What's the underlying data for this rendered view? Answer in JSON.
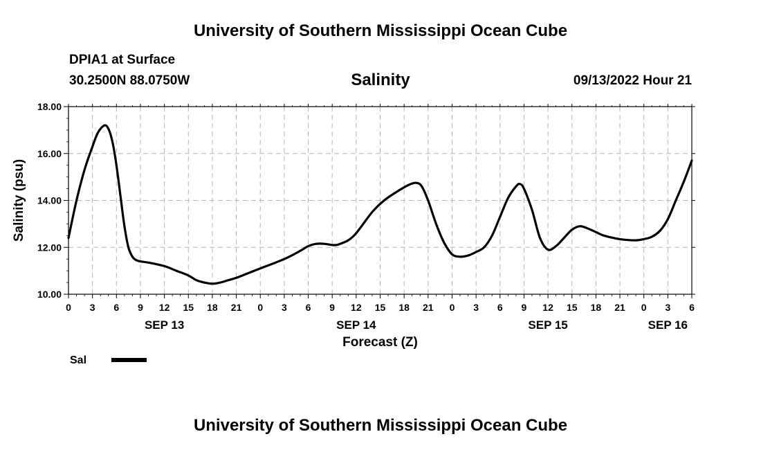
{
  "header": {
    "title": "University of Southern Mississippi Ocean Cube",
    "station": "DPIA1 at Surface",
    "coords": "30.2500N  88.0750W",
    "variable": "Salinity",
    "datetime": "09/13/2022 Hour 21"
  },
  "footer": {
    "title": "University of Southern Mississippi Ocean Cube"
  },
  "chart_data": {
    "type": "line",
    "title": "Salinity",
    "xlabel": "Forecast (Z)",
    "ylabel": "Salinity (psu)",
    "ylim": [
      10,
      18
    ],
    "xlim": [
      0,
      78
    ],
    "x_unit": "forecast hour from SEP 13 0Z (tick labels show hour of day)",
    "yticks": [
      "10.00",
      "12.00",
      "14.00",
      "16.00",
      "18.00"
    ],
    "xticks": [
      {
        "x": 0,
        "label": "0"
      },
      {
        "x": 3,
        "label": "3"
      },
      {
        "x": 6,
        "label": "6"
      },
      {
        "x": 9,
        "label": "9"
      },
      {
        "x": 12,
        "label": "12"
      },
      {
        "x": 15,
        "label": "15"
      },
      {
        "x": 18,
        "label": "18"
      },
      {
        "x": 21,
        "label": "21"
      },
      {
        "x": 24,
        "label": "0"
      },
      {
        "x": 27,
        "label": "3"
      },
      {
        "x": 30,
        "label": "6"
      },
      {
        "x": 33,
        "label": "9"
      },
      {
        "x": 36,
        "label": "12"
      },
      {
        "x": 39,
        "label": "15"
      },
      {
        "x": 42,
        "label": "18"
      },
      {
        "x": 45,
        "label": "21"
      },
      {
        "x": 48,
        "label": "0"
      },
      {
        "x": 51,
        "label": "3"
      },
      {
        "x": 54,
        "label": "6"
      },
      {
        "x": 57,
        "label": "9"
      },
      {
        "x": 60,
        "label": "12"
      },
      {
        "x": 63,
        "label": "15"
      },
      {
        "x": 66,
        "label": "18"
      },
      {
        "x": 69,
        "label": "21"
      },
      {
        "x": 72,
        "label": "0"
      },
      {
        "x": 75,
        "label": "3"
      },
      {
        "x": 78,
        "label": "6"
      }
    ],
    "date_labels": [
      {
        "x": 12,
        "label": "SEP 13"
      },
      {
        "x": 36,
        "label": "SEP 14"
      },
      {
        "x": 60,
        "label": "SEP 15"
      },
      {
        "x": 75,
        "label": "SEP 16"
      }
    ],
    "grid": true,
    "legend": "bottom-left",
    "series": [
      {
        "name": "Sal",
        "color": "#000000",
        "x": [
          0,
          1,
          2,
          3,
          3.7,
          4.5,
          5,
          5.5,
          6,
          6.5,
          7,
          7.5,
          8,
          8.5,
          9,
          10,
          12,
          13.5,
          15,
          16,
          17,
          18,
          19,
          20,
          21,
          22.5,
          24,
          27,
          29,
          30,
          31,
          32,
          33,
          33.5,
          34,
          35,
          36,
          38,
          39.5,
          41,
          42.5,
          43.5,
          44.2,
          45,
          46,
          47,
          48,
          49,
          50,
          51,
          52,
          53,
          54,
          55,
          56,
          56.5,
          57,
          58,
          59,
          60,
          61,
          62,
          63,
          64,
          65,
          66,
          67,
          69,
          71,
          72,
          73,
          74,
          75,
          76,
          77,
          78
        ],
        "values": [
          12.4,
          14.0,
          15.3,
          16.3,
          16.9,
          17.2,
          17.05,
          16.5,
          15.5,
          14.2,
          12.9,
          12.0,
          11.6,
          11.45,
          11.4,
          11.35,
          11.2,
          11.0,
          10.8,
          10.6,
          10.5,
          10.45,
          10.5,
          10.6,
          10.7,
          10.9,
          11.1,
          11.5,
          11.85,
          12.05,
          12.15,
          12.15,
          12.1,
          12.1,
          12.15,
          12.3,
          12.6,
          13.5,
          14.0,
          14.35,
          14.65,
          14.75,
          14.6,
          14.0,
          13.0,
          12.2,
          11.7,
          11.6,
          11.65,
          11.8,
          12.0,
          12.5,
          13.3,
          14.1,
          14.6,
          14.7,
          14.5,
          13.6,
          12.4,
          11.9,
          12.05,
          12.4,
          12.75,
          12.9,
          12.8,
          12.65,
          12.5,
          12.35,
          12.3,
          12.35,
          12.45,
          12.7,
          13.2,
          14.0,
          14.8,
          15.7
        ]
      }
    ]
  }
}
